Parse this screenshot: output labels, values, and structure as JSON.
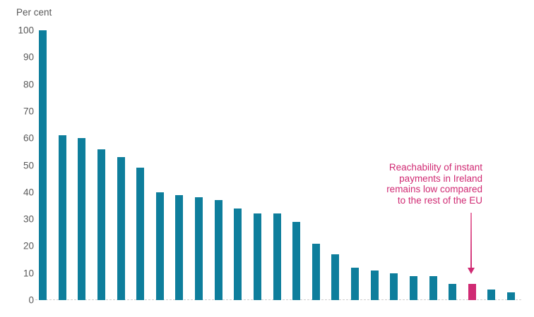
{
  "chart_data": {
    "type": "bar",
    "title": "",
    "ylabel": "Per cent",
    "xlabel": "",
    "ylim": [
      0,
      100
    ],
    "yticks": [
      0,
      10,
      20,
      30,
      40,
      50,
      60,
      70,
      80,
      90,
      100
    ],
    "grid": false,
    "legend": false,
    "values": [
      100,
      61,
      60,
      56,
      53,
      49,
      40,
      39,
      38,
      37,
      34,
      32,
      32,
      29,
      21,
      17,
      12,
      11,
      10,
      9,
      9,
      6,
      6,
      4,
      3
    ],
    "highlight_index": 22,
    "bar_color": "#0e7e9c",
    "highlight_color": "#d02a73",
    "axis_text_color": "#595959",
    "axis_line_color": "#cfcfcf",
    "annotation": {
      "text": "Reachability of instant\npayments in Ireland\nremains low compared\nto the rest of the EU",
      "color": "#d02a73"
    }
  }
}
